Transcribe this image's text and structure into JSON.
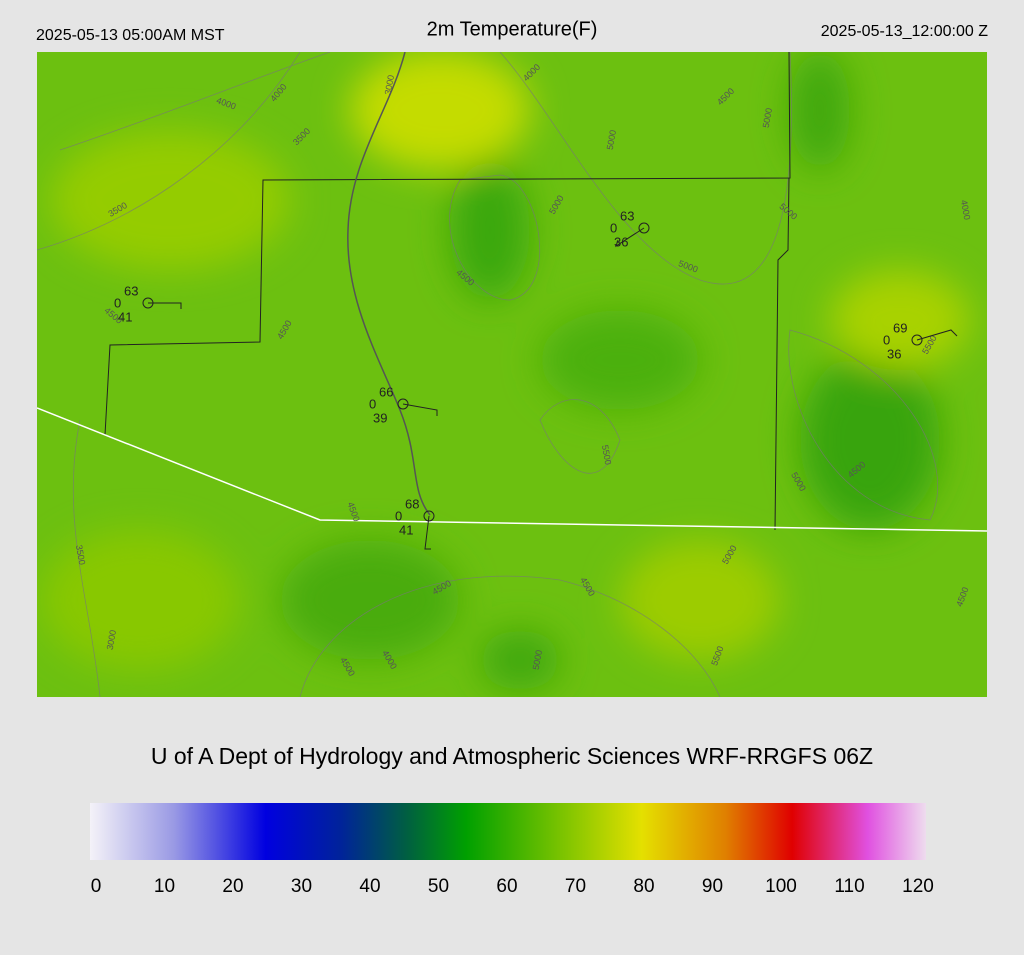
{
  "header": {
    "left": "2025-05-13 05:00AM MST",
    "title": "2m Temperature(F)",
    "right": "2025-05-13_12:00:00 Z"
  },
  "stations": [
    {
      "temperature": 63,
      "dewpoint": 41,
      "cover": 0
    },
    {
      "temperature": 63,
      "dewpoint": 36,
      "cover": 0
    },
    {
      "temperature": 69,
      "dewpoint": 36,
      "cover": 0
    },
    {
      "temperature": 66,
      "dewpoint": 39,
      "cover": 0
    },
    {
      "temperature": 68,
      "dewpoint": 41,
      "cover": 0
    }
  ],
  "contour_labels": [
    4000,
    4000,
    3000,
    3500,
    4000,
    4500,
    5000,
    5000,
    5000,
    5000,
    4000,
    3500,
    4500,
    5000,
    4500,
    4500,
    5500,
    5500,
    5000,
    4500,
    4500,
    3500,
    4500,
    4500,
    5000,
    4500,
    3000,
    4500,
    4000,
    5000,
    5500
  ],
  "footer": {
    "title": "U of A Dept of Hydrology and Atmospheric Sciences WRF-RRGFS 06Z"
  },
  "colorbar": {
    "ticks": [
      0,
      10,
      20,
      30,
      40,
      50,
      60,
      70,
      80,
      90,
      100,
      110,
      120
    ]
  }
}
